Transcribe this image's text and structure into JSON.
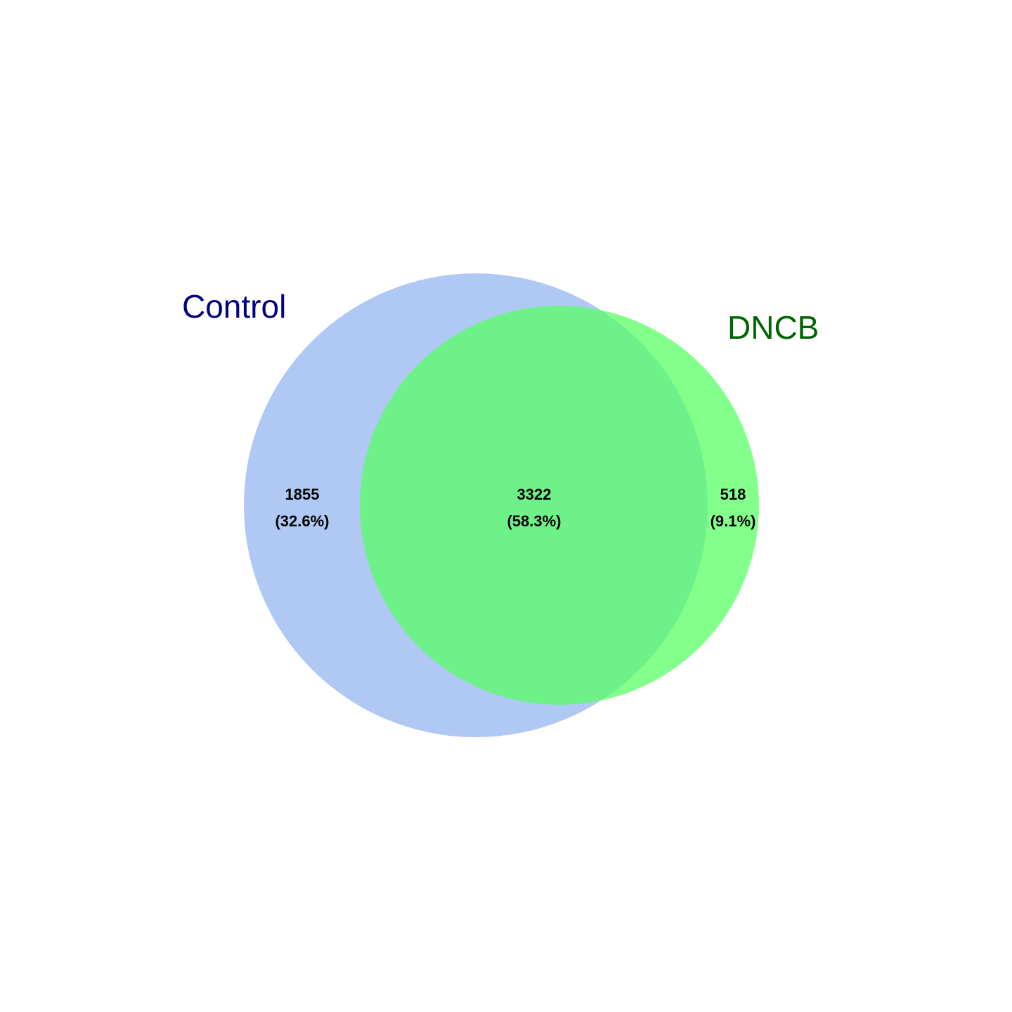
{
  "venn": {
    "sets": [
      {
        "key": "control",
        "label": "Control",
        "fill": "#b0c8f4",
        "label_color": "#000080"
      },
      {
        "key": "dncb",
        "label": "DNCB",
        "fill": "#5aff66",
        "label_color": "#006400"
      }
    ],
    "regions": [
      {
        "key": "control_only",
        "count": "1855",
        "percent": "(32.6%)"
      },
      {
        "key": "both",
        "count": "3322",
        "percent": "(58.3%)"
      },
      {
        "key": "dncb_only",
        "count": "518",
        "percent": "(9.1%)"
      }
    ]
  }
}
